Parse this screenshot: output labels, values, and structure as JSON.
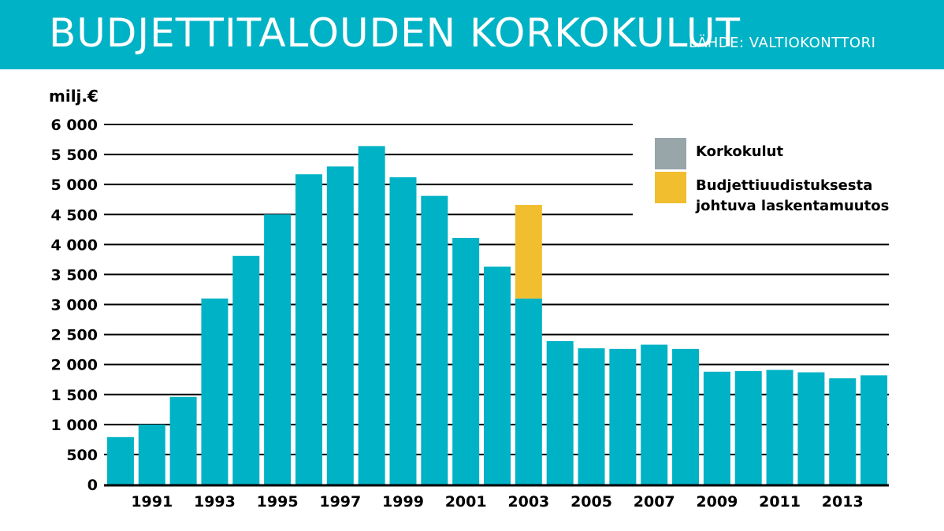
{
  "header": {
    "title": "BUDJETTITALOUDEN KORKOKULUT",
    "source": "LÄHDE: VALTIOKONTTORI"
  },
  "colors": {
    "header_bg": "#00b2c5",
    "bar": "#00b2c5",
    "accounting_change": "#f0be2e",
    "legend_korkokulut": "#98a5a9"
  },
  "legend": {
    "items": [
      {
        "label": "Korkokulut",
        "color": "#98a5a9"
      },
      {
        "label_line1": "Budjettiuudistuksesta",
        "label_line2": "johtuva laskentamuutos",
        "color": "#f0be2e"
      }
    ]
  },
  "chart_data": {
    "type": "bar",
    "title": "BUDJETTITALOUDEN KORKOKULUT",
    "ylabel": "milj.€",
    "xlabel": "",
    "ylim": [
      0,
      6000
    ],
    "yticks": [
      0,
      500,
      1000,
      1500,
      2000,
      2500,
      3000,
      3500,
      4000,
      4500,
      5000,
      5500,
      6000
    ],
    "ytick_labels": [
      "0",
      "500",
      "1 000",
      "1 500",
      "2 000",
      "2 500",
      "3 000",
      "3 500",
      "4 000",
      "4 500",
      "5 000",
      "5 500",
      "6 000"
    ],
    "categories": [
      "1990",
      "1991",
      "1992",
      "1993",
      "1994",
      "1995",
      "1996",
      "1997",
      "1998",
      "1999",
      "2000",
      "2001",
      "2002",
      "2003",
      "2004",
      "2005",
      "2006",
      "2007",
      "2008",
      "2009",
      "2010",
      "2011",
      "2012",
      "2013",
      "2014"
    ],
    "xtick_labels": [
      "1991",
      "1993",
      "1995",
      "1997",
      "1999",
      "2001",
      "2003",
      "2005",
      "2007",
      "2009",
      "2011",
      "2013"
    ],
    "series": [
      {
        "name": "Korkokulut",
        "values": [
          790,
          1000,
          1460,
          3100,
          3810,
          4500,
          5170,
          5300,
          5640,
          5120,
          4810,
          4110,
          3630,
          3100,
          2390,
          2270,
          2260,
          2330,
          2260,
          1880,
          1890,
          1910,
          1870,
          1770,
          1820
        ]
      },
      {
        "name": "Budjettiuudistuksesta johtuva laskentamuutos",
        "values": [
          0,
          0,
          0,
          0,
          0,
          0,
          0,
          0,
          0,
          0,
          0,
          0,
          0,
          1560,
          0,
          0,
          0,
          0,
          0,
          0,
          0,
          0,
          0,
          0,
          0
        ]
      }
    ],
    "stacked": true,
    "grid": true,
    "legend_position": "top-right"
  }
}
